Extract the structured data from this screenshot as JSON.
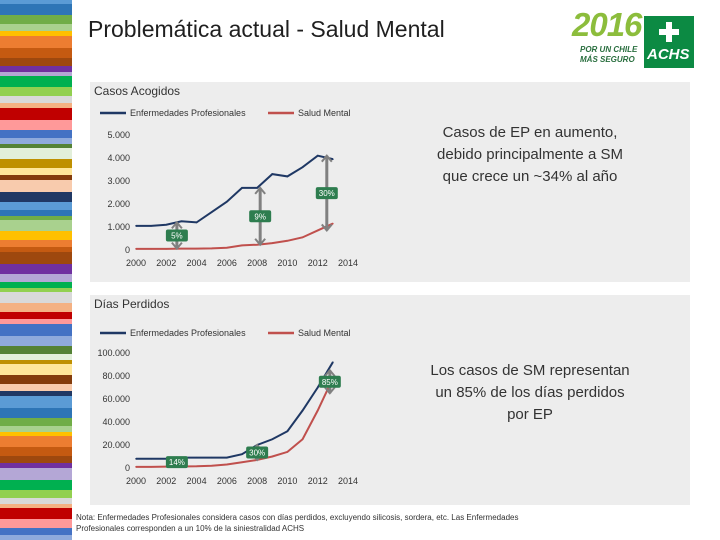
{
  "slide": {
    "title": "Problemática actual - Salud Mental",
    "footnote": "Nota: Enfermedades Profesionales considera casos con días perdidos, excluyendo silicosis, sordera, etc. Las Enfermedades Profesionales corresponden a un 10% de la siniestralidad ACHS"
  },
  "logo": {
    "year": "2016",
    "tagline_1": "POR UN CHILE",
    "tagline_2": "MÁS SEGURO",
    "brand": "ACHS",
    "year_color": "#8cbd3c",
    "brand_color": "#0c8a43"
  },
  "colors": {
    "ep": "#1f3864",
    "sm": "#c0504d",
    "bracket": "#808080",
    "panel": "#ededed"
  },
  "notes": {
    "casos": "Casos de EP en aumento, debido principalmente a SM que crece un ~34% al año",
    "dias": "Los casos de SM representan un 85% de los días perdidos por EP"
  },
  "chart_data": [
    {
      "type": "line",
      "title": "Casos Acogidos",
      "xlabel": "",
      "ylabel": "",
      "xlim": [
        2000,
        2014
      ],
      "ylim": [
        0,
        5000
      ],
      "x_ticks": [
        "2000",
        "2002",
        "2004",
        "2006",
        "2008",
        "2010",
        "2012",
        "2014"
      ],
      "y_ticks": [
        "5.000",
        "4.000",
        "3.000",
        "2.000",
        "1.000",
        "0"
      ],
      "y_tick_values": [
        5000,
        4000,
        3000,
        2000,
        1000,
        0
      ],
      "legend": [
        "Enfermedades Profesionales",
        "Salud Mental"
      ],
      "legend_position": "top-left",
      "x": [
        2000,
        2001,
        2002,
        2003,
        2004,
        2005,
        2006,
        2007,
        2008,
        2009,
        2010,
        2011,
        2012,
        2013
      ],
      "series": [
        {
          "name": "Enfermedades Profesionales",
          "values": [
            1050,
            1050,
            1100,
            1250,
            1200,
            1650,
            2100,
            2700,
            2700,
            3300,
            3200,
            3600,
            4100,
            3950
          ]
        },
        {
          "name": "Salud Mental",
          "values": [
            50,
            50,
            50,
            60,
            60,
            70,
            100,
            200,
            230,
            300,
            400,
            550,
            850,
            1150
          ]
        }
      ],
      "annotations": [
        {
          "label": "5%",
          "x": 2002.7,
          "y_from": 60,
          "y_to": 1200
        },
        {
          "label": "9%",
          "x": 2008.2,
          "y_from": 230,
          "y_to": 2700
        },
        {
          "label": "30%",
          "x": 2012.6,
          "y_from": 850,
          "y_to": 4100
        }
      ]
    },
    {
      "type": "line",
      "title": "Días Perdidos",
      "xlabel": "",
      "ylabel": "",
      "xlim": [
        2000,
        2014
      ],
      "ylim": [
        0,
        100000
      ],
      "x_ticks": [
        "2000",
        "2002",
        "2004",
        "2006",
        "2008",
        "2010",
        "2012",
        "2014"
      ],
      "y_ticks": [
        "100.000",
        "80.000",
        "60.000",
        "40.000",
        "20.000",
        "0"
      ],
      "y_tick_values": [
        100000,
        80000,
        60000,
        40000,
        20000,
        0
      ],
      "legend": [
        "Enfermedades Profesionales",
        "Salud Mental"
      ],
      "legend_position": "top-left",
      "x": [
        2000,
        2001,
        2002,
        2003,
        2004,
        2005,
        2006,
        2007,
        2008,
        2009,
        2010,
        2011,
        2012,
        2013
      ],
      "series": [
        {
          "name": "Enfermedades Profesionales",
          "values": [
            8000,
            8000,
            8000,
            9000,
            9000,
            9000,
            9000,
            12000,
            20000,
            25000,
            32000,
            50000,
            70000,
            92000
          ]
        },
        {
          "name": "Salud Mental",
          "values": [
            1000,
            1000,
            1200,
            1300,
            1500,
            2000,
            3000,
            5000,
            7000,
            10000,
            14000,
            25000,
            50000,
            78000
          ]
        }
      ],
      "annotations": [
        {
          "label": "14%",
          "x": 2002.7,
          "y_from": 1200,
          "y_to": 9000
        },
        {
          "label": "30%",
          "x": 2008.0,
          "y_from": 7000,
          "y_to": 20000
        },
        {
          "label": "85%",
          "x": 2012.8,
          "y_from": 65000,
          "y_to": 85000
        }
      ]
    }
  ]
}
